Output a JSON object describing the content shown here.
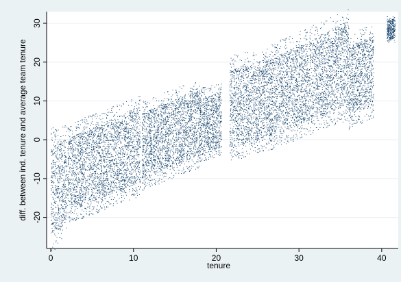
{
  "chart_data": {
    "type": "scatter",
    "title": "",
    "xlabel": "tenure",
    "ylabel": "diff. between ind. tenure and average team tenure",
    "xlim": [
      -0.5,
      42
    ],
    "ylim": [
      -28,
      33
    ],
    "xticks": [
      0,
      10,
      20,
      30,
      40
    ],
    "yticks": [
      -20,
      -10,
      0,
      10,
      20,
      30
    ],
    "grid": "horizontal",
    "legend": "none",
    "point_color": "#1a476f",
    "clusters": [
      {
        "x_range": [
          0.0,
          1.9
        ],
        "y_at_start": [
          -25,
          -1
        ],
        "y_at_end": [
          -21,
          0
        ]
      },
      {
        "x_range": [
          2.0,
          3.6
        ],
        "y_at_start": [
          -18,
          0
        ],
        "y_at_end": [
          -17,
          2
        ]
      },
      {
        "x_range": [
          3.6,
          10.8
        ],
        "y_at_start": [
          -17,
          2
        ],
        "y_at_end": [
          -11,
          8
        ]
      },
      {
        "x_range": [
          11.0,
          18.0
        ],
        "y_at_start": [
          -10,
          7
        ],
        "y_at_end": [
          -4,
          13
        ]
      },
      {
        "x_range": [
          18.0,
          20.6
        ],
        "y_at_start": [
          -3,
          11
        ],
        "y_at_end": [
          -2,
          12
        ]
      },
      {
        "x_range": [
          21.6,
          26.5
        ],
        "y_at_start": [
          -2,
          18
        ],
        "y_at_end": [
          1,
          21
        ]
      },
      {
        "x_range": [
          26.5,
          36.0
        ],
        "y_at_start": [
          1,
          21
        ],
        "y_at_end": [
          9,
          30
        ]
      },
      {
        "x_range": [
          36.0,
          39.0
        ],
        "y_at_start": [
          6,
          24
        ],
        "y_at_end": [
          9,
          27
        ]
      },
      {
        "x_range": [
          40.6,
          41.6
        ],
        "y_at_start": [
          26,
          31
        ],
        "y_at_end": [
          26,
          31
        ]
      }
    ]
  }
}
